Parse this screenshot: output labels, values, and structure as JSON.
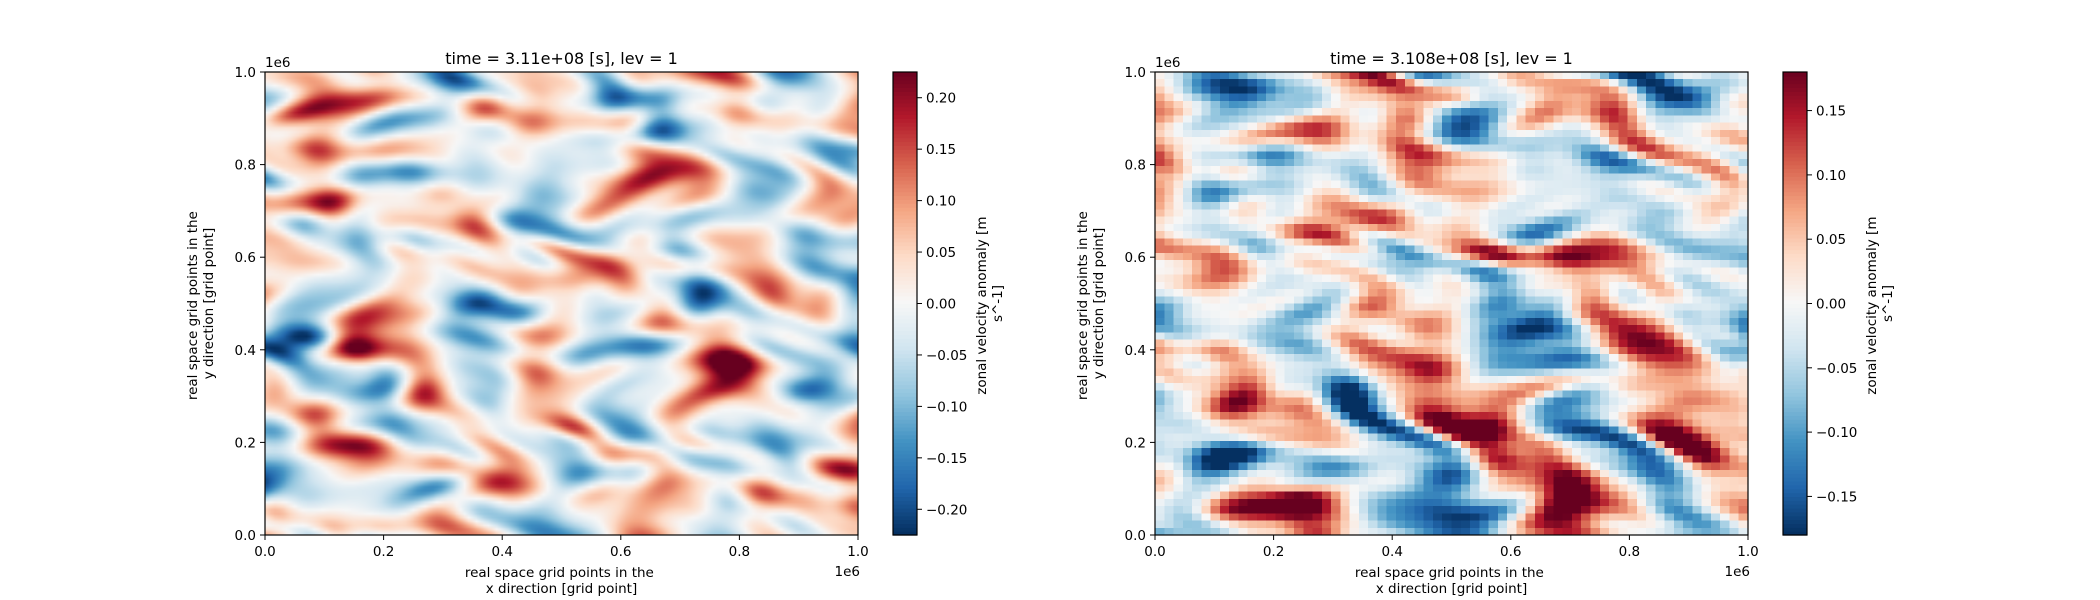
{
  "chart_data": [
    {
      "type": "heatmap",
      "title": "time = 3.11e+08 [s], lev = 1",
      "xlabel_lines": [
        "real space grid points in the",
        "x direction [grid point]"
      ],
      "ylabel_lines": [
        "real space grid points in the",
        "y direction [grid point]"
      ],
      "xlim": [
        0,
        1000000
      ],
      "ylim": [
        0,
        1000000
      ],
      "x_ticks": [
        0,
        200000,
        400000,
        600000,
        800000,
        1000000
      ],
      "x_tick_labels": [
        "0.0",
        "0.2",
        "0.4",
        "0.6",
        "0.8",
        "1.0"
      ],
      "y_ticks": [
        0,
        200000,
        400000,
        600000,
        800000,
        1000000
      ],
      "y_tick_labels": [
        "0.0",
        "0.2",
        "0.4",
        "0.6",
        "0.8",
        "1.0"
      ],
      "x_offset_label": "1e6",
      "y_offset_label": "1e6",
      "colormap": "RdBu_r",
      "colorbar": {
        "label_lines": [
          "zonal velocity anomaly [m",
          "s^-1]"
        ],
        "vmin": -0.225,
        "vmax": 0.225,
        "ticks": [
          -0.2,
          -0.15,
          -0.1,
          -0.05,
          0.0,
          0.05,
          0.1,
          0.15,
          0.2
        ],
        "tick_labels": [
          "−0.20",
          "−0.15",
          "−0.10",
          "−0.05",
          "0.00",
          "0.05",
          "0.10",
          "0.15",
          "0.20"
        ]
      },
      "field": {
        "resolution": "fine",
        "nx": 150,
        "ny": 120,
        "features": [
          {
            "x": 0.17,
            "y": 0.41,
            "amp": 0.21
          },
          {
            "x": 0.28,
            "y": 0.3,
            "amp": 0.17
          },
          {
            "x": 0.62,
            "y": 0.77,
            "amp": 0.18
          },
          {
            "x": 0.74,
            "y": 0.36,
            "amp": 0.17
          },
          {
            "x": 0.43,
            "y": 0.57,
            "amp": 0.13
          },
          {
            "x": 0.56,
            "y": 0.6,
            "amp": 0.12
          },
          {
            "x": 0.91,
            "y": 0.9,
            "amp": 0.12
          },
          {
            "x": 0.96,
            "y": 0.16,
            "amp": 0.15
          },
          {
            "x": 0.08,
            "y": 0.93,
            "amp": 0.1
          },
          {
            "x": 0.2,
            "y": 0.82,
            "amp": 0.1
          },
          {
            "x": 0.27,
            "y": 0.14,
            "amp": 0.12
          },
          {
            "x": 0.55,
            "y": 0.26,
            "amp": 0.1
          },
          {
            "x": 0.83,
            "y": 0.08,
            "amp": 0.11
          },
          {
            "x": 0.05,
            "y": 0.72,
            "amp": 0.09
          },
          {
            "x": 0.85,
            "y": 0.6,
            "amp": 0.1
          },
          {
            "x": 0.36,
            "y": 0.95,
            "amp": 0.08
          },
          {
            "x": 0.12,
            "y": 0.45,
            "amp": -0.15
          },
          {
            "x": 0.2,
            "y": 0.3,
            "amp": -0.15
          },
          {
            "x": 0.65,
            "y": 0.86,
            "amp": -0.15
          },
          {
            "x": 0.93,
            "y": 0.82,
            "amp": -0.15
          },
          {
            "x": 0.92,
            "y": 0.62,
            "amp": -0.14
          },
          {
            "x": 0.33,
            "y": 0.78,
            "amp": -0.12
          },
          {
            "x": 0.03,
            "y": 0.42,
            "amp": -0.12
          },
          {
            "x": 0.97,
            "y": 0.42,
            "amp": -0.15
          },
          {
            "x": 0.86,
            "y": 0.18,
            "amp": -0.13
          },
          {
            "x": 0.6,
            "y": 0.65,
            "amp": -0.12
          },
          {
            "x": 0.38,
            "y": 0.49,
            "amp": -0.12
          },
          {
            "x": 0.52,
            "y": 0.4,
            "amp": -0.1
          },
          {
            "x": 0.3,
            "y": 0.97,
            "amp": -0.13
          },
          {
            "x": 0.75,
            "y": 0.52,
            "amp": -0.09
          },
          {
            "x": 0.05,
            "y": 0.12,
            "amp": -0.1
          },
          {
            "x": 0.45,
            "y": 0.2,
            "amp": -0.09
          }
        ]
      }
    },
    {
      "type": "heatmap",
      "title": "time = 3.108e+08 [s], lev = 1",
      "xlabel_lines": [
        "real space grid points in the",
        "x direction [grid point]"
      ],
      "ylabel_lines": [
        "real space grid points in the",
        "y direction [grid point]"
      ],
      "xlim": [
        0,
        1000000
      ],
      "ylim": [
        0,
        1000000
      ],
      "x_ticks": [
        0,
        200000,
        400000,
        600000,
        800000,
        1000000
      ],
      "x_tick_labels": [
        "0.0",
        "0.2",
        "0.4",
        "0.6",
        "0.8",
        "1.0"
      ],
      "y_ticks": [
        0,
        200000,
        400000,
        600000,
        800000,
        1000000
      ],
      "y_tick_labels": [
        "0.0",
        "0.2",
        "0.4",
        "0.6",
        "0.8",
        "1.0"
      ],
      "x_offset_label": "1e6",
      "y_offset_label": "1e6",
      "colormap": "RdBu_r",
      "colorbar": {
        "label_lines": [
          "zonal velocity anomaly [m",
          "s^-1]"
        ],
        "vmin": -0.18,
        "vmax": 0.18,
        "ticks": [
          -0.15,
          -0.1,
          -0.05,
          0.0,
          0.05,
          0.1,
          0.15
        ],
        "tick_labels": [
          "−0.15",
          "−0.10",
          "−0.05",
          "0.00",
          "0.05",
          "0.10",
          "0.15"
        ]
      },
      "field": {
        "resolution": "coarse",
        "nx": 64,
        "ny": 64,
        "features": [
          {
            "x": 0.47,
            "y": 0.97,
            "amp": 0.17
          },
          {
            "x": 0.58,
            "y": 0.88,
            "amp": 0.17
          },
          {
            "x": 0.24,
            "y": 0.86,
            "amp": 0.15
          },
          {
            "x": 0.3,
            "y": 0.63,
            "amp": 0.15
          },
          {
            "x": 0.75,
            "y": 0.59,
            "amp": 0.17
          },
          {
            "x": 0.7,
            "y": 0.32,
            "amp": 0.18
          },
          {
            "x": 0.57,
            "y": 0.25,
            "amp": 0.14
          },
          {
            "x": 0.72,
            "y": 0.05,
            "amp": 0.15
          },
          {
            "x": 0.25,
            "y": 0.05,
            "amp": 0.14
          },
          {
            "x": 0.8,
            "y": 0.4,
            "amp": 0.12
          },
          {
            "x": 0.4,
            "y": 0.68,
            "amp": 0.12
          },
          {
            "x": 0.55,
            "y": 0.63,
            "amp": 0.12
          },
          {
            "x": 0.03,
            "y": 0.84,
            "amp": 0.1
          },
          {
            "x": 0.87,
            "y": 0.83,
            "amp": 0.1
          },
          {
            "x": 0.9,
            "y": 0.2,
            "amp": 0.11
          },
          {
            "x": 0.38,
            "y": 0.37,
            "amp": 0.09
          },
          {
            "x": 0.14,
            "y": 0.3,
            "amp": 0.09
          },
          {
            "x": 0.72,
            "y": 0.99,
            "amp": -0.17
          },
          {
            "x": 0.42,
            "y": 0.62,
            "amp": -0.14
          },
          {
            "x": 0.7,
            "y": 0.65,
            "amp": -0.14
          },
          {
            "x": 0.75,
            "y": 0.78,
            "amp": -0.12
          },
          {
            "x": 0.48,
            "y": 0.88,
            "amp": -0.13
          },
          {
            "x": 0.12,
            "y": 0.18,
            "amp": -0.14
          },
          {
            "x": 0.92,
            "y": 0.4,
            "amp": -0.13
          },
          {
            "x": 0.1,
            "y": 0.74,
            "amp": -0.12
          },
          {
            "x": 0.25,
            "y": 0.13,
            "amp": -0.15
          },
          {
            "x": 0.53,
            "y": 0.05,
            "amp": -0.12
          },
          {
            "x": 0.47,
            "y": 0.33,
            "amp": -0.1
          },
          {
            "x": 0.63,
            "y": 0.45,
            "amp": -0.1
          },
          {
            "x": 0.9,
            "y": 0.96,
            "amp": -0.11
          },
          {
            "x": 0.05,
            "y": 0.5,
            "amp": -0.1
          },
          {
            "x": 0.34,
            "y": 0.92,
            "amp": -0.09
          }
        ]
      }
    }
  ]
}
